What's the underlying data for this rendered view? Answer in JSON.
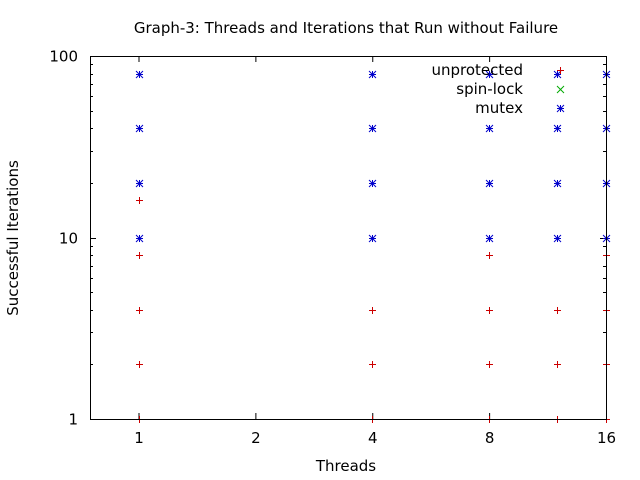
{
  "chart_data": {
    "type": "scatter",
    "title": "Graph-3: Threads and Iterations that Run without Failure",
    "xlabel": "Threads",
    "ylabel": "Successful Iterations",
    "xscale": "log2",
    "yscale": "log10",
    "xlim": [
      0.75,
      16
    ],
    "ylim": [
      1,
      100
    ],
    "xticks": [
      {
        "value": 1,
        "label": "1"
      },
      {
        "value": 2,
        "label": "2"
      },
      {
        "value": 4,
        "label": "4"
      },
      {
        "value": 8,
        "label": "8"
      },
      {
        "value": 16,
        "label": "16"
      }
    ],
    "yticks": [
      {
        "value": 1,
        "label": "1"
      },
      {
        "value": 10,
        "label": "10"
      },
      {
        "value": 100,
        "label": "100"
      }
    ],
    "legend_position": "top-right",
    "series": [
      {
        "name": "unprotected",
        "color": "#cc0000",
        "marker": "plus",
        "points": [
          [
            1,
            1
          ],
          [
            1,
            2
          ],
          [
            1,
            4
          ],
          [
            1,
            8
          ],
          [
            1,
            16
          ],
          [
            4,
            1
          ],
          [
            4,
            2
          ],
          [
            4,
            4
          ],
          [
            8,
            1
          ],
          [
            8,
            2
          ],
          [
            8,
            4
          ],
          [
            8,
            8
          ],
          [
            12,
            1
          ],
          [
            12,
            2
          ],
          [
            12,
            4
          ],
          [
            16,
            1
          ],
          [
            16,
            2
          ],
          [
            16,
            4
          ],
          [
            16,
            8
          ]
        ]
      },
      {
        "name": "spin-lock",
        "color": "#00aa00",
        "marker": "cross",
        "points": []
      },
      {
        "name": "mutex",
        "color": "#0000cc",
        "marker": "star",
        "points": [
          [
            1,
            10
          ],
          [
            1,
            20
          ],
          [
            1,
            40
          ],
          [
            1,
            80
          ],
          [
            4,
            10
          ],
          [
            4,
            20
          ],
          [
            4,
            40
          ],
          [
            4,
            80
          ],
          [
            8,
            10
          ],
          [
            8,
            20
          ],
          [
            8,
            40
          ],
          [
            8,
            80
          ],
          [
            12,
            10
          ],
          [
            12,
            20
          ],
          [
            12,
            40
          ],
          [
            12,
            80
          ],
          [
            16,
            10
          ],
          [
            16,
            20
          ],
          [
            16,
            40
          ],
          [
            16,
            80
          ]
        ]
      }
    ]
  }
}
